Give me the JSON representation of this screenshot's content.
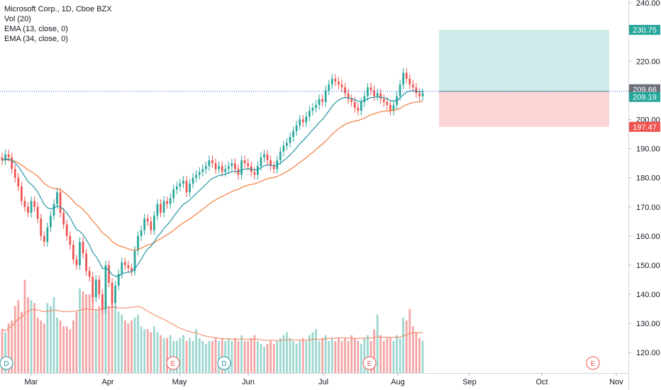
{
  "legend": {
    "symbol": "Microsoft Corp., 1D, Cboe BZX",
    "vol": "Vol (20)",
    "ema_fast": "EMA (13, close, 0)",
    "ema_slow": "EMA (34, close, 0)"
  },
  "colors": {
    "up": "#26a69a",
    "down": "#ef5350",
    "up_vol": "#9bd6cf",
    "down_vol": "#f5a3a3",
    "ema_fast": "#2196a3",
    "ema_slow": "#f57c3a",
    "vol_ma": "#f0805a",
    "profit_zone": "#cdebe8",
    "loss_zone": "#fbd6d6",
    "price_line": "#2a6fd0",
    "target_label": "#26a69a",
    "stop_label": "#ef5350",
    "gray_label": "#6b6f78"
  },
  "chart_data": {
    "type": "candlestick",
    "y_axis": {
      "min": 113,
      "max": 241,
      "ticks": [
        "120.00",
        "130.00",
        "140.00",
        "150.00",
        "160.00",
        "170.00",
        "180.00",
        "190.00",
        "200.00",
        "210.00",
        "220.00",
        "240.00"
      ],
      "tick_values": [
        120,
        130,
        140,
        150,
        160,
        170,
        180,
        190,
        200,
        210,
        220,
        240
      ]
    },
    "x_axis": {
      "labels": [
        "Mar",
        "Apr",
        "May",
        "Jun",
        "Jul",
        "Aug",
        "Sep",
        "Oct",
        "Nov"
      ]
    },
    "price_labels": [
      {
        "text": "230.75",
        "value": 230.75,
        "kind": "target"
      },
      {
        "text": "209.66",
        "value": 209.66,
        "kind": "gray"
      },
      {
        "text": "209.19",
        "value": 209.19,
        "kind": "target"
      },
      {
        "text": "197.47",
        "value": 197.47,
        "kind": "stop"
      }
    ],
    "position": {
      "entry": 209.66,
      "target": 230.75,
      "stop": 197.47
    },
    "events": [
      {
        "text": "D",
        "kind": "dividend"
      },
      {
        "text": "E",
        "kind": "earnings"
      },
      {
        "text": "D",
        "kind": "dividend"
      },
      {
        "text": "E",
        "kind": "earnings"
      },
      {
        "text": "E",
        "kind": "earnings"
      }
    ],
    "candles_close": [
      186,
      188,
      187,
      183,
      180,
      177,
      172,
      170,
      168,
      172,
      170,
      166,
      160,
      158,
      163,
      167,
      171,
      175,
      168,
      164,
      160,
      157,
      152,
      150,
      158,
      154,
      148,
      146,
      139,
      145,
      140,
      135,
      150,
      144,
      137,
      143,
      147,
      151,
      150,
      149,
      148,
      155,
      160,
      162,
      166,
      165,
      162,
      167,
      171,
      168,
      172,
      171,
      173,
      176,
      177,
      178,
      179,
      175,
      178,
      180,
      181,
      182,
      183,
      184,
      186,
      185,
      183,
      184,
      182,
      183,
      184,
      185,
      183,
      181,
      186,
      185,
      184,
      182,
      181,
      184,
      187,
      188,
      186,
      184,
      183,
      186,
      189,
      191,
      192,
      194,
      196,
      198,
      200,
      199,
      201,
      203,
      204,
      205,
      207,
      206,
      210,
      212,
      214,
      213,
      212,
      211,
      209,
      207,
      206,
      204,
      203,
      206,
      208,
      211,
      210,
      208,
      209,
      207,
      206,
      205,
      203,
      205,
      208,
      212,
      216,
      214,
      212,
      211,
      209,
      208,
      209
    ],
    "candles_open": [
      187,
      186,
      188,
      187,
      183,
      180,
      177,
      172,
      170,
      168,
      172,
      170,
      166,
      160,
      158,
      163,
      167,
      171,
      175,
      168,
      164,
      160,
      157,
      152,
      150,
      158,
      154,
      148,
      146,
      139,
      145,
      140,
      135,
      150,
      144,
      137,
      143,
      147,
      151,
      150,
      149,
      148,
      155,
      160,
      162,
      166,
      165,
      162,
      167,
      171,
      168,
      172,
      171,
      173,
      176,
      177,
      178,
      179,
      175,
      178,
      180,
      181,
      182,
      183,
      184,
      186,
      185,
      183,
      184,
      182,
      183,
      184,
      185,
      183,
      181,
      186,
      185,
      184,
      182,
      181,
      184,
      187,
      188,
      186,
      184,
      183,
      186,
      189,
      191,
      192,
      194,
      196,
      198,
      200,
      199,
      201,
      203,
      204,
      205,
      207,
      206,
      210,
      212,
      214,
      213,
      212,
      211,
      209,
      207,
      206,
      204,
      203,
      206,
      208,
      211,
      210,
      208,
      209,
      207,
      206,
      205,
      203,
      205,
      208,
      212,
      216,
      214,
      212,
      211,
      209,
      208
    ],
    "volume": [
      128,
      127,
      130,
      131,
      136,
      138,
      134,
      145,
      139,
      138,
      137,
      132,
      131,
      130,
      137,
      136,
      139,
      132,
      131,
      129,
      129,
      128,
      131,
      134,
      142,
      141,
      140,
      140,
      139,
      135,
      136,
      138,
      137,
      136,
      138,
      136,
      134,
      133,
      131,
      130,
      131,
      132,
      133,
      129,
      128,
      128,
      127,
      129,
      127,
      126,
      125,
      125,
      126,
      124,
      124,
      125,
      126,
      124,
      125,
      124,
      128,
      125,
      124,
      123,
      124,
      124,
      125,
      124,
      125,
      124,
      125,
      124,
      125,
      124,
      126,
      124,
      124,
      125,
      126,
      124,
      123,
      122,
      123,
      124,
      123,
      124,
      125,
      126,
      127,
      125,
      124,
      123,
      124,
      125,
      124,
      126,
      127,
      128,
      124,
      125,
      126,
      124,
      125,
      124,
      125,
      124,
      125,
      124,
      126,
      125,
      124,
      123,
      125,
      126,
      124,
      128,
      133,
      126,
      124,
      125,
      125,
      124,
      126,
      125,
      132,
      131,
      135,
      129,
      127,
      125,
      124
    ]
  }
}
